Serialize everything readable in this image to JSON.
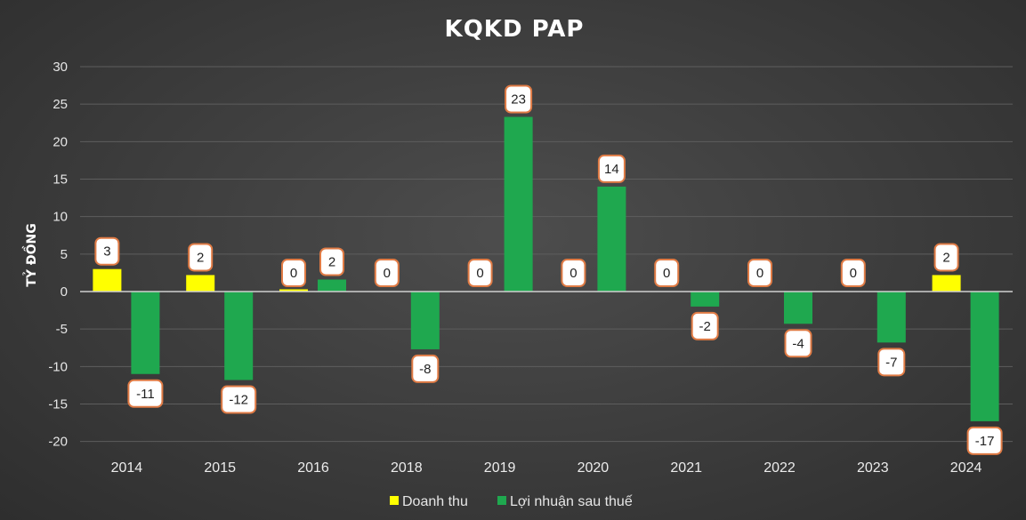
{
  "chart_data": {
    "type": "bar",
    "title": "KQKD PAP",
    "xlabel": "",
    "ylabel": "TỶ ĐỒNG",
    "ylim": [
      -20,
      30
    ],
    "yticks": [
      30,
      25,
      20,
      15,
      10,
      5,
      0,
      -5,
      -10,
      -15,
      -20
    ],
    "grid": true,
    "legend_position": "bottom",
    "categories": [
      "2014",
      "2015",
      "2016",
      "2018",
      "2019",
      "2020",
      "2021",
      "2022",
      "2023",
      "2024"
    ],
    "series": [
      {
        "name": "Doanh thu",
        "color": "#ffff00",
        "values": [
          3,
          2.2,
          0.3,
          0,
          0,
          0,
          0,
          0,
          0,
          2.2
        ],
        "labels": [
          "3",
          "2",
          "0",
          "0",
          "0",
          "0",
          "0",
          "0",
          "0",
          "2"
        ]
      },
      {
        "name": "Lợi nhuận sau thuế",
        "color": "#1fa84f",
        "values": [
          -11,
          -11.8,
          1.6,
          -7.7,
          23.3,
          14,
          -2,
          -4.3,
          -6.8,
          -17.3
        ],
        "labels": [
          "-11",
          "-12",
          "2",
          "-8",
          "23",
          "14",
          "-2",
          "-4",
          "-7",
          "-17"
        ]
      }
    ]
  }
}
